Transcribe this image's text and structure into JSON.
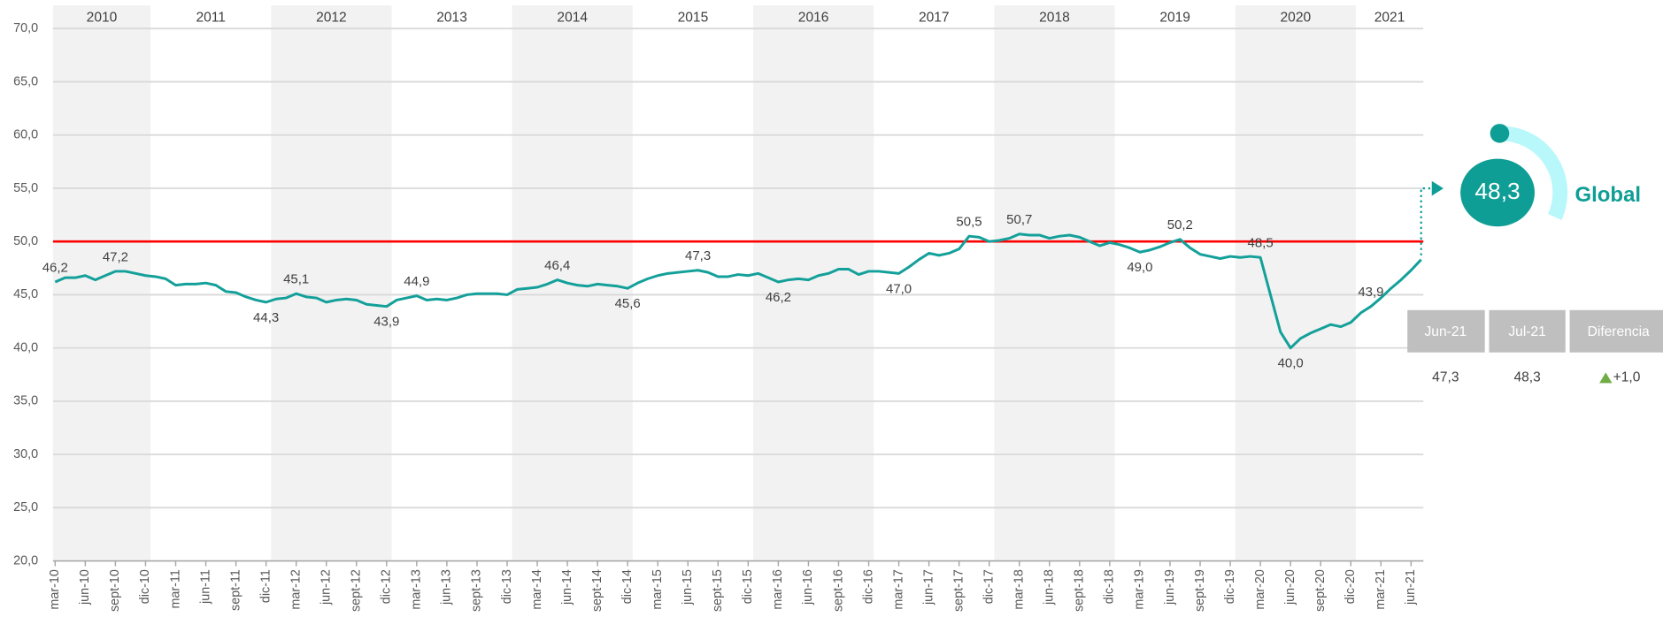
{
  "chart_data": {
    "type": "line",
    "color": "#14a09a",
    "ylim": [
      20,
      70
    ],
    "yticks": [
      {
        "value": 20,
        "label": "20,0"
      },
      {
        "value": 25,
        "label": "25,0"
      },
      {
        "value": 30,
        "label": "30,0"
      },
      {
        "value": 35,
        "label": "35,0"
      },
      {
        "value": 40,
        "label": "40,0"
      },
      {
        "value": 45,
        "label": "45,0"
      },
      {
        "value": 50,
        "label": "50,0"
      },
      {
        "value": 55,
        "label": "55,0"
      },
      {
        "value": 60,
        "label": "60,0"
      },
      {
        "value": 65,
        "label": "65,0"
      },
      {
        "value": 70,
        "label": "70,0"
      }
    ],
    "grid": true,
    "reference_line": {
      "value": 50,
      "color": "#ff0000"
    },
    "year_bands": [
      "2010",
      "2011",
      "2012",
      "2013",
      "2014",
      "2015",
      "2016",
      "2017",
      "2018",
      "2019",
      "2020",
      "2021"
    ],
    "categories": [
      "mar-10",
      null,
      null,
      "jun-10",
      null,
      null,
      "sept-10",
      null,
      null,
      "dic-10",
      null,
      null,
      "mar-11",
      null,
      null,
      "jun-11",
      null,
      null,
      "sept-11",
      null,
      null,
      "dic-11",
      null,
      null,
      "mar-12",
      null,
      null,
      "jun-12",
      null,
      null,
      "sept-12",
      null,
      null,
      "dic-12",
      null,
      null,
      "mar-13",
      null,
      null,
      "jun-13",
      null,
      null,
      "sept-13",
      null,
      null,
      "dic-13",
      null,
      null,
      "mar-14",
      null,
      null,
      "jun-14",
      null,
      null,
      "sept-14",
      null,
      null,
      "dic-14",
      null,
      null,
      "mar-15",
      null,
      null,
      "jun-15",
      null,
      null,
      "sept-15",
      null,
      null,
      "dic-15",
      null,
      null,
      "mar-16",
      null,
      null,
      "jun-16",
      null,
      null,
      "sept-16",
      null,
      null,
      "dic-16",
      null,
      null,
      "mar-17",
      null,
      null,
      "jun-17",
      null,
      null,
      "sept-17",
      null,
      null,
      "dic-17",
      null,
      null,
      "mar-18",
      null,
      null,
      "jun-18",
      null,
      null,
      "sept-18",
      null,
      null,
      "dic-18",
      null,
      null,
      "mar-19",
      null,
      null,
      "jun-19",
      null,
      null,
      "sept-19",
      null,
      null,
      "dic-19",
      null,
      null,
      "mar-20",
      null,
      null,
      "jun-20",
      null,
      null,
      "sept-20",
      null,
      null,
      "dic-20",
      null,
      null,
      "mar-21",
      null,
      null,
      "jun-21",
      null
    ],
    "values": [
      46.2,
      46.6,
      46.6,
      46.8,
      46.4,
      46.8,
      47.2,
      47.2,
      47.0,
      46.8,
      46.7,
      46.5,
      45.9,
      46.0,
      46.0,
      46.1,
      45.9,
      45.3,
      45.2,
      44.8,
      44.5,
      44.3,
      44.6,
      44.7,
      45.1,
      44.8,
      44.7,
      44.3,
      44.5,
      44.6,
      44.5,
      44.1,
      44.0,
      43.9,
      44.5,
      44.7,
      44.9,
      44.5,
      44.6,
      44.5,
      44.7,
      45.0,
      45.1,
      45.1,
      45.1,
      45.0,
      45.5,
      45.6,
      45.7,
      46.0,
      46.4,
      46.1,
      45.9,
      45.8,
      46.0,
      45.9,
      45.8,
      45.6,
      46.1,
      46.5,
      46.8,
      47.0,
      47.1,
      47.2,
      47.3,
      47.1,
      46.7,
      46.7,
      46.9,
      46.8,
      47.0,
      46.6,
      46.2,
      46.4,
      46.5,
      46.4,
      46.8,
      47.0,
      47.4,
      47.4,
      46.9,
      47.2,
      47.2,
      47.1,
      47.0,
      47.6,
      48.3,
      48.9,
      48.7,
      48.9,
      49.3,
      50.5,
      50.4,
      50.0,
      50.1,
      50.3,
      50.7,
      50.6,
      50.6,
      50.3,
      50.5,
      50.6,
      50.4,
      50.0,
      49.6,
      49.9,
      49.7,
      49.4,
      49.0,
      49.2,
      49.5,
      49.9,
      50.2,
      49.4,
      48.8,
      48.6,
      48.4,
      48.6,
      48.5,
      48.6,
      48.5,
      45.0,
      41.5,
      40.0,
      40.9,
      41.4,
      41.8,
      42.2,
      42.0,
      42.4,
      43.3,
      43.9,
      44.7,
      45.6,
      46.4,
      47.3,
      48.3
    ],
    "value_labels": [
      "46,2",
      null,
      null,
      null,
      null,
      null,
      "47,2",
      null,
      null,
      null,
      null,
      null,
      null,
      null,
      null,
      null,
      null,
      null,
      null,
      null,
      null,
      "44,3",
      null,
      null,
      "45,1",
      null,
      null,
      null,
      null,
      null,
      null,
      null,
      null,
      "43,9",
      null,
      null,
      "44,9",
      null,
      null,
      null,
      null,
      null,
      null,
      null,
      null,
      null,
      null,
      null,
      null,
      null,
      "46,4",
      null,
      null,
      null,
      null,
      null,
      null,
      "45,6",
      null,
      null,
      null,
      null,
      null,
      null,
      "47,3",
      null,
      null,
      null,
      null,
      null,
      null,
      null,
      "46,2",
      null,
      null,
      null,
      null,
      null,
      null,
      null,
      null,
      null,
      null,
      null,
      "47,0",
      null,
      null,
      null,
      null,
      null,
      null,
      "50,5",
      null,
      null,
      null,
      null,
      "50,7",
      null,
      null,
      null,
      null,
      null,
      null,
      null,
      null,
      null,
      null,
      null,
      "49,0",
      null,
      null,
      null,
      "50,2",
      null,
      null,
      null,
      null,
      null,
      null,
      null,
      "48,5",
      null,
      null,
      "40,0",
      null,
      null,
      null,
      null,
      null,
      null,
      null,
      "43,9",
      null,
      null,
      null,
      null,
      null
    ]
  },
  "summary": {
    "value": "48,3",
    "label": "Global",
    "table": {
      "headers": [
        "Jun-21",
        "Jul-21",
        "Diferencia"
      ],
      "row": [
        "47,3",
        "48,3",
        "+1,0"
      ]
    }
  }
}
